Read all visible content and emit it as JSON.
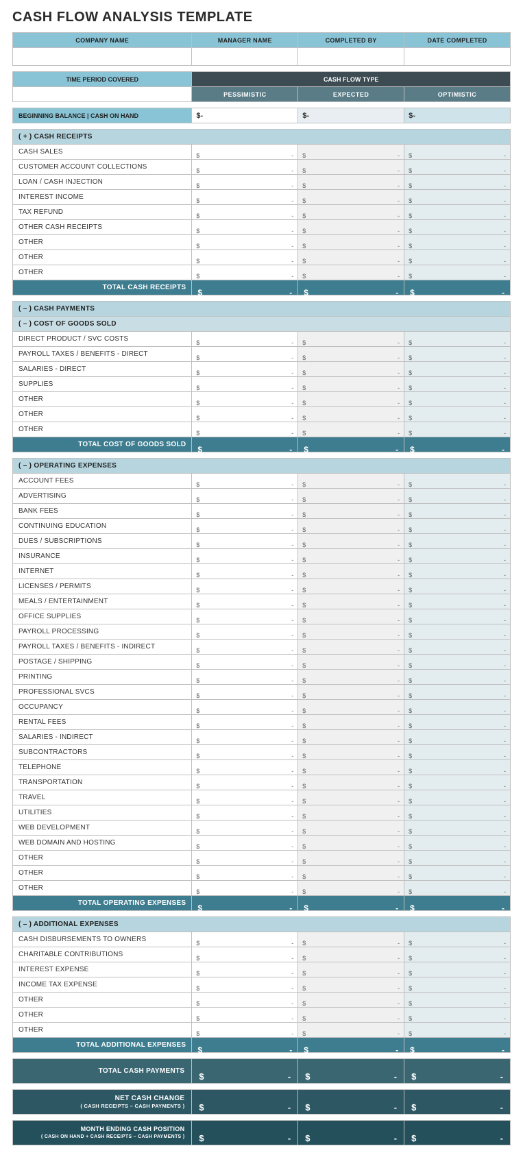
{
  "title": "CASH FLOW ANALYSIS TEMPLATE",
  "info_headers": [
    "COMPANY NAME",
    "MANAGER NAME",
    "COMPLETED BY",
    "DATE COMPLETED"
  ],
  "info_values": [
    "",
    "",
    "",
    ""
  ],
  "time_period_label": "TIME PERIOD COVERED",
  "time_period_value": "",
  "cash_flow_type_label": "CASH FLOW TYPE",
  "scenarios": [
    "PESSIMISTIC",
    "EXPECTED",
    "OPTIMISTIC"
  ],
  "beginning_balance_label": "BEGINNING BALANCE | CASH ON HAND",
  "currency": "$",
  "dash": "-",
  "sections": {
    "receipts": {
      "header": "( + )  CASH RECEIPTS",
      "rows": [
        "CASH SALES",
        "CUSTOMER ACCOUNT COLLECTIONS",
        "LOAN / CASH INJECTION",
        "INTEREST INCOME",
        "TAX REFUND",
        "OTHER CASH RECEIPTS",
        "OTHER",
        "OTHER",
        "OTHER"
      ],
      "total_label": "TOTAL CASH RECEIPTS"
    },
    "payments_header": "( – )  CASH PAYMENTS",
    "cogs": {
      "header": "( – )  COST OF GOODS SOLD",
      "rows": [
        "DIRECT PRODUCT / SVC COSTS",
        "PAYROLL TAXES / BENEFITS - DIRECT",
        "SALARIES - DIRECT",
        "SUPPLIES",
        "OTHER",
        "OTHER",
        "OTHER"
      ],
      "total_label": "TOTAL COST OF GOODS SOLD"
    },
    "opex": {
      "header": "( – )  OPERATING EXPENSES",
      "rows": [
        "ACCOUNT FEES",
        "ADVERTISING",
        "BANK FEES",
        "CONTINUING EDUCATION",
        "DUES / SUBSCRIPTIONS",
        "INSURANCE",
        "INTERNET",
        "LICENSES / PERMITS",
        "MEALS / ENTERTAINMENT",
        "OFFICE SUPPLIES",
        "PAYROLL PROCESSING",
        "PAYROLL TAXES / BENEFITS - INDIRECT",
        "POSTAGE / SHIPPING",
        "PRINTING",
        "PROFESSIONAL SVCS",
        "OCCUPANCY",
        "RENTAL FEES",
        "SALARIES - INDIRECT",
        "SUBCONTRACTORS",
        "TELEPHONE",
        "TRANSPORTATION",
        "TRAVEL",
        "UTILITIES",
        "WEB DEVELOPMENT",
        "WEB DOMAIN AND HOSTING",
        "OTHER",
        "OTHER",
        "OTHER"
      ],
      "total_label": "TOTAL OPERATING EXPENSES"
    },
    "addl": {
      "header": "( – )  ADDITIONAL EXPENSES",
      "rows": [
        "CASH DISBURSEMENTS TO OWNERS",
        "CHARITABLE CONTRIBUTIONS",
        "INTEREST EXPENSE",
        "INCOME TAX EXPENSE",
        "OTHER",
        "OTHER",
        "OTHER"
      ],
      "total_label": "TOTAL ADDITIONAL EXPENSES"
    }
  },
  "grand_totals": {
    "total_payments": "TOTAL CASH PAYMENTS",
    "net_change": "NET CASH CHANGE",
    "net_change_sub": "( CASH RECEIPTS – CASH PAYMENTS )",
    "ending": "MONTH ENDING CASH POSITION",
    "ending_sub": "( CASH ON HAND + CASH RECEIPTS – CASH PAYMENTS )"
  },
  "colors": {
    "header_blue": "#89c4d6",
    "dark_slate": "#3d4b52",
    "scenario_bg": "#5a7c87",
    "section_bg": "#b6d5df",
    "subsection_bg": "#c8dde4",
    "total_bg": "#3d7d8f",
    "grand1": "#3a6672",
    "grand2": "#2c5763",
    "grand3": "#24505c",
    "exp_cell": "#f0f0f0",
    "opt_cell": "#e3ecef",
    "border": "#bfbfbf"
  }
}
